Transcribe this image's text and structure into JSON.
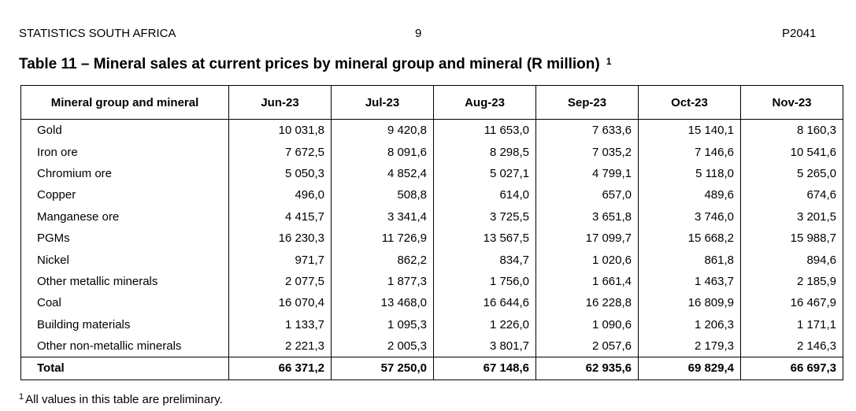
{
  "header": {
    "organisation": "STATISTICS SOUTH AFRICA",
    "page_number": "9",
    "publication_code": "P2041"
  },
  "title": {
    "text": "Table 11 – Mineral sales at current prices by mineral group and mineral (R million)",
    "footnote_ref": "1"
  },
  "table": {
    "columns": [
      "Mineral group and mineral",
      "Jun-23",
      "Jul-23",
      "Aug-23",
      "Sep-23",
      "Oct-23",
      "Nov-23"
    ],
    "rows": [
      {
        "name": "Gold",
        "values": [
          "10 031,8",
          "9 420,8",
          "11 653,0",
          "7 633,6",
          "15 140,1",
          "8 160,3"
        ]
      },
      {
        "name": "Iron ore",
        "values": [
          "7 672,5",
          "8 091,6",
          "8 298,5",
          "7 035,2",
          "7 146,6",
          "10 541,6"
        ]
      },
      {
        "name": "Chromium ore",
        "values": [
          "5 050,3",
          "4 852,4",
          "5 027,1",
          "4 799,1",
          "5 118,0",
          "5 265,0"
        ]
      },
      {
        "name": "Copper",
        "values": [
          "496,0",
          "508,8",
          "614,0",
          "657,0",
          "489,6",
          "674,6"
        ]
      },
      {
        "name": "Manganese ore",
        "values": [
          "4 415,7",
          "3 341,4",
          "3 725,5",
          "3 651,8",
          "3 746,0",
          "3 201,5"
        ]
      },
      {
        "name": "PGMs",
        "values": [
          "16 230,3",
          "11 726,9",
          "13 567,5",
          "17 099,7",
          "15 668,2",
          "15 988,7"
        ]
      },
      {
        "name": "Nickel",
        "values": [
          "971,7",
          "862,2",
          "834,7",
          "1 020,6",
          "861,8",
          "894,6"
        ]
      },
      {
        "name": "Other metallic minerals",
        "values": [
          "2 077,5",
          "1 877,3",
          "1 756,0",
          "1 661,4",
          "1 463,7",
          "2 185,9"
        ]
      },
      {
        "name": "Coal",
        "values": [
          "16 070,4",
          "13 468,0",
          "16 644,6",
          "16 228,8",
          "16 809,9",
          "16 467,9"
        ]
      },
      {
        "name": "Building materials",
        "values": [
          "1 133,7",
          "1 095,3",
          "1 226,0",
          "1 090,6",
          "1 206,3",
          "1 171,1"
        ]
      },
      {
        "name": "Other non-metallic minerals",
        "values": [
          "2 221,3",
          "2 005,3",
          "3 801,7",
          "2 057,6",
          "2 179,3",
          "2 146,3"
        ]
      }
    ],
    "total": {
      "name": "Total",
      "values": [
        "66 371,2",
        "57 250,0",
        "67 148,6",
        "62 935,6",
        "69 829,4",
        "66 697,3"
      ]
    }
  },
  "footnote": {
    "marker": "1",
    "text": "All values in this table are preliminary."
  }
}
